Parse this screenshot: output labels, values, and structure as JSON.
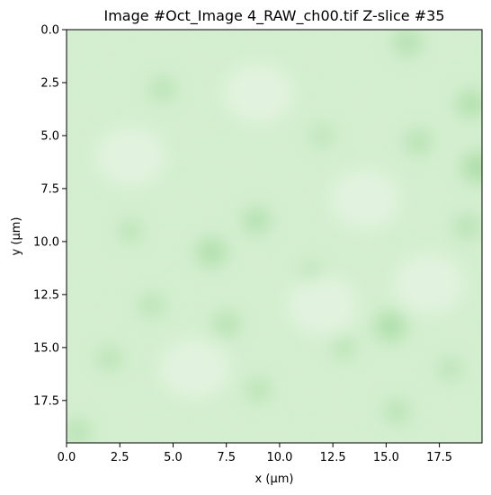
{
  "chart_data": {
    "type": "heatmap",
    "title": "Image #Oct_Image 4_RAW_ch00.tif Z-slice #35",
    "xlabel": "x (μm)",
    "ylabel": "y (μm)",
    "xlim": [
      0,
      19.5
    ],
    "ylim": [
      19.5,
      0
    ],
    "y_inverted": true,
    "x_ticks": [
      0.0,
      2.5,
      5.0,
      7.5,
      10.0,
      12.5,
      15.0,
      17.5
    ],
    "x_tick_labels": [
      "0.0",
      "2.5",
      "5.0",
      "7.5",
      "10.0",
      "12.5",
      "15.0",
      "17.5"
    ],
    "y_ticks": [
      0.0,
      2.5,
      5.0,
      7.5,
      10.0,
      12.5,
      15.0,
      17.5
    ],
    "y_tick_labels": [
      "0.0",
      "2.5",
      "5.0",
      "7.5",
      "10.0",
      "12.5",
      "15.0",
      "17.5"
    ],
    "colormap": "white-to-green",
    "colors": {
      "low": "#f2faf1",
      "mid": "#d6f0d2",
      "high": "#a8dca4"
    },
    "grid": false,
    "intensity_blobs": [
      {
        "x": 16.0,
        "y": 0.6,
        "v": 0.7
      },
      {
        "x": 19.0,
        "y": 3.5,
        "v": 0.8
      },
      {
        "x": 19.3,
        "y": 6.5,
        "v": 1.0
      },
      {
        "x": 16.5,
        "y": 5.3,
        "v": 0.6
      },
      {
        "x": 8.9,
        "y": 9.0,
        "v": 0.7
      },
      {
        "x": 6.8,
        "y": 10.5,
        "v": 0.85
      },
      {
        "x": 15.2,
        "y": 14.0,
        "v": 0.95
      },
      {
        "x": 7.5,
        "y": 13.9,
        "v": 0.6
      },
      {
        "x": 18.8,
        "y": 9.3,
        "v": 0.55
      },
      {
        "x": 4.5,
        "y": 2.8,
        "v": 0.5
      },
      {
        "x": 2.0,
        "y": 15.5,
        "v": 0.45
      },
      {
        "x": 11.5,
        "y": 11.5,
        "v": 0.4
      },
      {
        "x": 15.5,
        "y": 18.0,
        "v": 0.5
      },
      {
        "x": 12.0,
        "y": 5.0,
        "v": 0.35
      },
      {
        "x": 3.0,
        "y": 9.5,
        "v": 0.4
      },
      {
        "x": 9.0,
        "y": 17.0,
        "v": 0.45
      },
      {
        "x": 18.0,
        "y": 16.0,
        "v": 0.4
      },
      {
        "x": 0.5,
        "y": 19.0,
        "v": 0.6
      },
      {
        "x": 4.0,
        "y": 13.0,
        "v": 0.45
      },
      {
        "x": 13.0,
        "y": 15.0,
        "v": 0.4
      }
    ]
  }
}
